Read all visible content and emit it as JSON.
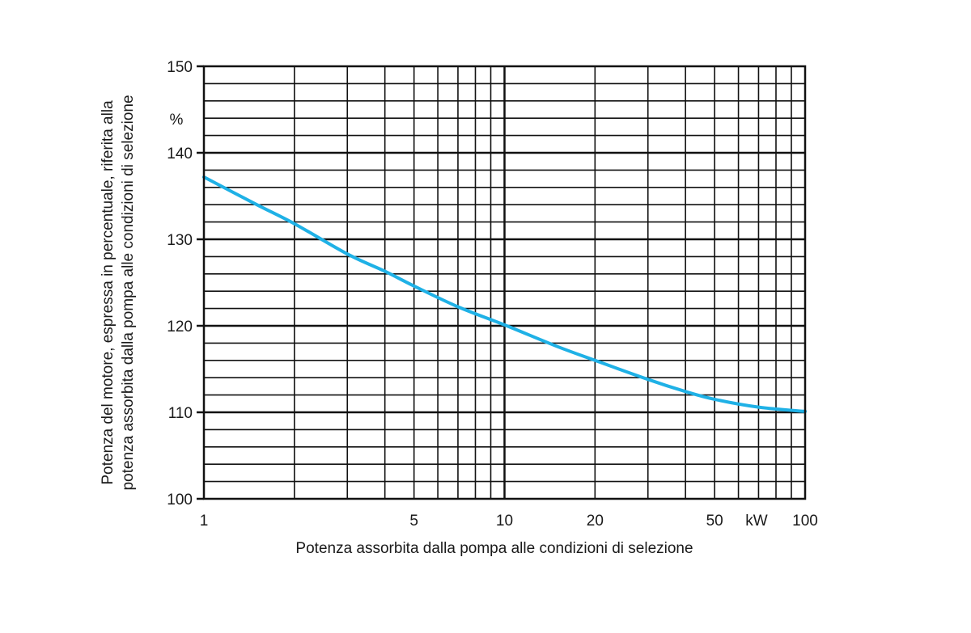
{
  "chart_data": {
    "type": "line",
    "title": "",
    "xlabel": "Potenza assorbita dalla pompa alle condizioni di selezione",
    "ylabel_line1": "Potenza del motore, espressa in percentuale, riferita alla",
    "ylabel_line2": "potenza assorbita dalla pompa alle condizioni di selezione",
    "x_scale": "log",
    "xlim": [
      1,
      100
    ],
    "ylim": [
      100,
      150
    ],
    "x_ticks": [
      {
        "value": 1,
        "label": "1"
      },
      {
        "value": 5,
        "label": "5"
      },
      {
        "value": 10,
        "label": "10"
      },
      {
        "value": 20,
        "label": "20"
      },
      {
        "value": 50,
        "label": "50"
      },
      {
        "value": 100,
        "label": "100"
      }
    ],
    "x_unit": "kW",
    "y_ticks": [
      {
        "value": 100,
        "label": "100"
      },
      {
        "value": 110,
        "label": "110"
      },
      {
        "value": 120,
        "label": "120"
      },
      {
        "value": 130,
        "label": "130"
      },
      {
        "value": 140,
        "label": "140"
      },
      {
        "value": 150,
        "label": "150"
      }
    ],
    "y_unit": "%",
    "grid": true,
    "series": [
      {
        "color": "#1fb1e6",
        "points": [
          [
            1,
            137.2
          ],
          [
            1.5,
            134.0
          ],
          [
            2,
            131.8
          ],
          [
            3,
            128.3
          ],
          [
            4,
            126.3
          ],
          [
            5,
            124.6
          ],
          [
            7,
            122.2
          ],
          [
            10,
            120.1
          ],
          [
            15,
            117.6
          ],
          [
            20,
            116.0
          ],
          [
            30,
            113.8
          ],
          [
            40,
            112.4
          ],
          [
            50,
            111.5
          ],
          [
            70,
            110.6
          ],
          [
            100,
            110.1
          ]
        ]
      }
    ]
  }
}
